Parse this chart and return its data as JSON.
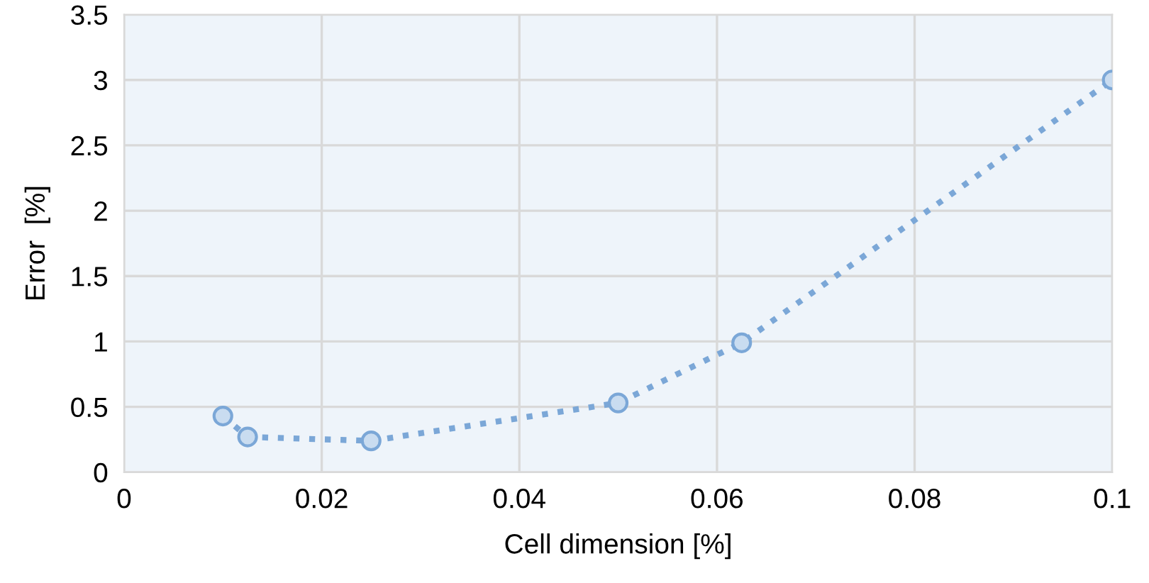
{
  "chart_data": {
    "type": "line",
    "xlabel": "Cell dimension [%]",
    "ylabel": "Error  [%]",
    "x": [
      0.01,
      0.0125,
      0.025,
      0.05,
      0.0625,
      0.1
    ],
    "series": [
      {
        "color": "#7ba7d7",
        "values": [
          0.43,
          0.27,
          0.24,
          0.53,
          0.99,
          3.0
        ]
      }
    ],
    "xlim": [
      0,
      0.1
    ],
    "xticks": [
      0,
      0.02,
      0.04,
      0.06,
      0.08,
      0.1
    ],
    "ylim": [
      0,
      3.5
    ],
    "yticks": [
      0,
      0.5,
      1,
      1.5,
      2,
      2.5,
      3,
      3.5
    ],
    "grid": true,
    "marker": "circle",
    "line_style": "dotted"
  }
}
